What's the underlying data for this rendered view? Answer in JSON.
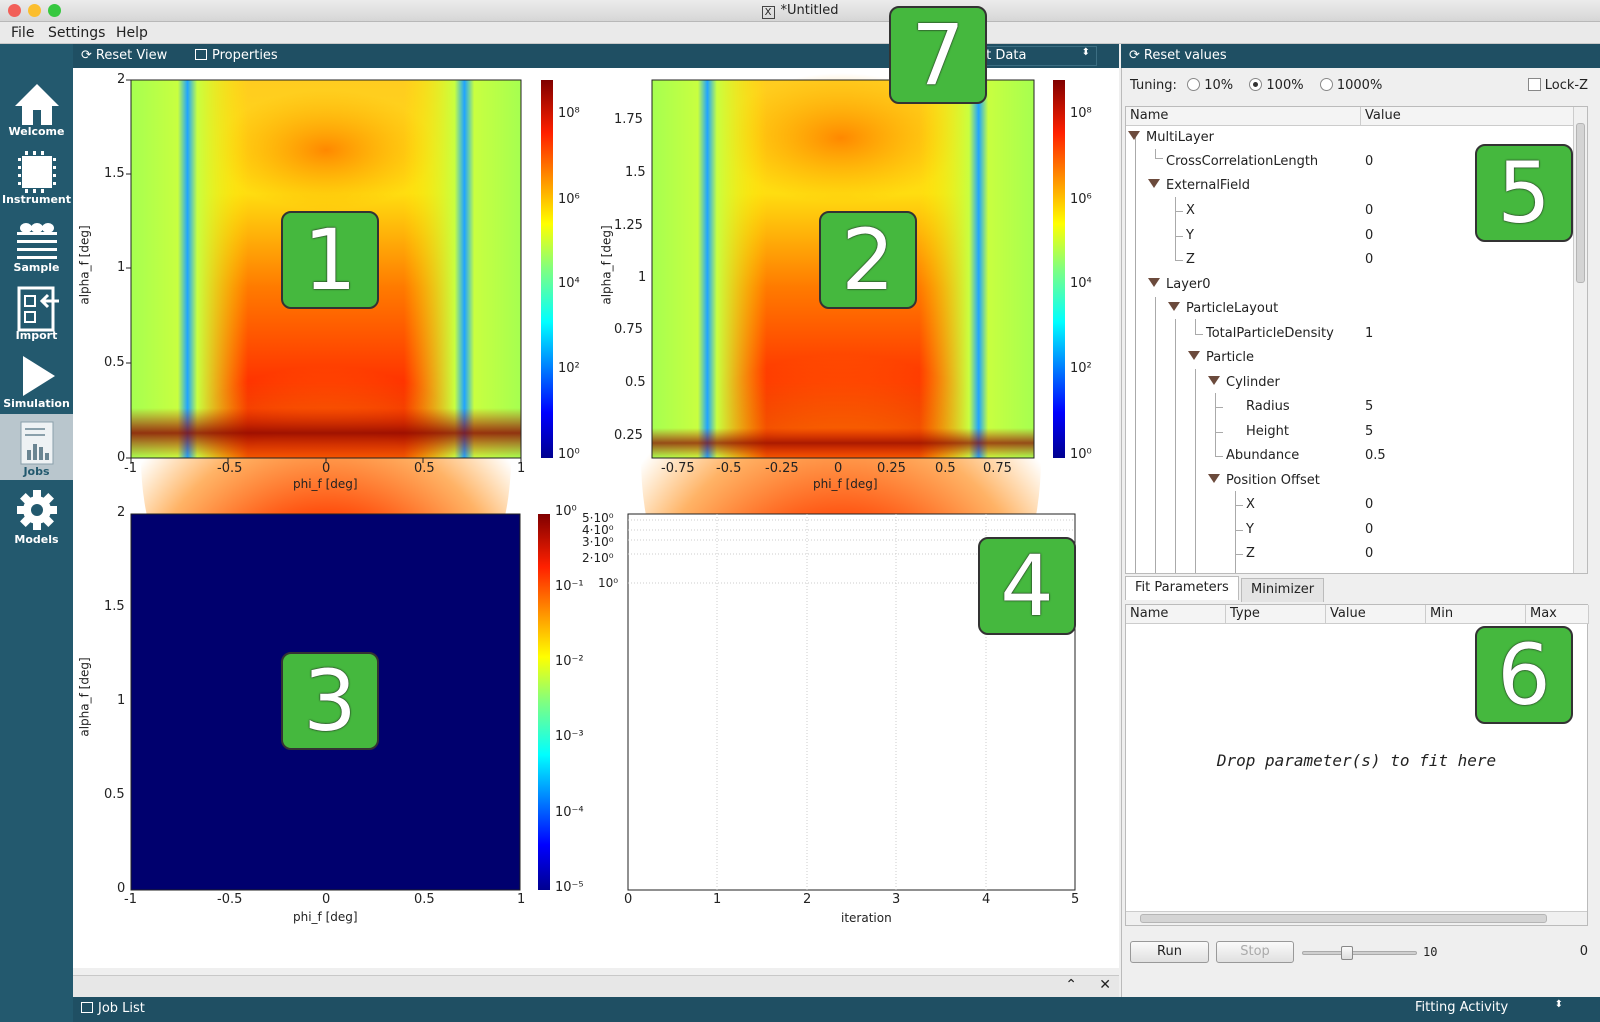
{
  "window": {
    "title": "*Untitled"
  },
  "menu": {
    "file": "File",
    "settings": "Settings",
    "help": "Help"
  },
  "sidebar": {
    "items": [
      {
        "label": "Welcome"
      },
      {
        "label": "Instrument"
      },
      {
        "label": "Sample"
      },
      {
        "label": "Import"
      },
      {
        "label": "Simulation"
      },
      {
        "label": "Jobs"
      },
      {
        "label": "Models"
      }
    ]
  },
  "toolbar": {
    "reset_view": "Reset View",
    "properties": "Properties",
    "fit_data": "Fit Data",
    "reset_values": "Reset values"
  },
  "badges": [
    "1",
    "2",
    "3",
    "4",
    "5",
    "6",
    "7"
  ],
  "plots": {
    "p1": {
      "xticks": [
        "-1",
        "-0.5",
        "0",
        "0.5",
        "1"
      ],
      "yticks": [
        "0",
        "0.5",
        "1",
        "1.5",
        "2"
      ],
      "xlabel": "phi_f [deg]",
      "ylabel": "alpha_f [deg]"
    },
    "p2": {
      "xticks": [
        "-0.75",
        "-0.5",
        "-0.25",
        "0",
        "0.25",
        "0.5",
        "0.75"
      ],
      "yticks": [
        "0.25",
        "0.5",
        "0.75",
        "1",
        "1.25",
        "1.5",
        "1.75"
      ],
      "xlabel": "phi_f [deg]",
      "ylabel": "alpha_f [deg]"
    },
    "p3": {
      "xticks": [
        "-1",
        "-0.5",
        "0",
        "0.5",
        "1"
      ],
      "yticks": [
        "0",
        "0.5",
        "1",
        "1.5",
        "2"
      ],
      "xlabel": "phi_f [deg]",
      "ylabel": "alpha_f [deg]"
    },
    "p4": {
      "xticks": [
        "0",
        "1",
        "2",
        "3",
        "4",
        "5"
      ],
      "yticks": [
        "5·10⁰",
        "4·10⁰",
        "3·10⁰",
        "2·10⁰",
        "10⁰"
      ],
      "xlabel": "iteration"
    },
    "cb12": [
      "10⁸",
      "10⁶",
      "10⁴",
      "10²",
      "10⁰"
    ],
    "cb3": [
      "10⁰",
      "10⁻¹",
      "10⁻²",
      "10⁻³",
      "10⁻⁴",
      "10⁻⁵"
    ]
  },
  "tuning": {
    "label": "Tuning:",
    "opt1": "10%",
    "opt2": "100%",
    "opt3": "1000%",
    "selected": "100%",
    "lockz": "Lock-Z"
  },
  "tree": {
    "col_name": "Name",
    "col_value": "Value",
    "rows": [
      {
        "name": "MultiLayer",
        "value": ""
      },
      {
        "name": "CrossCorrelationLength",
        "value": "0"
      },
      {
        "name": "ExternalField",
        "value": ""
      },
      {
        "name": "X",
        "value": "0"
      },
      {
        "name": "Y",
        "value": "0"
      },
      {
        "name": "Z",
        "value": "0"
      },
      {
        "name": "Layer0",
        "value": ""
      },
      {
        "name": "ParticleLayout",
        "value": ""
      },
      {
        "name": "TotalParticleDensity",
        "value": "1"
      },
      {
        "name": "Particle",
        "value": ""
      },
      {
        "name": "Cylinder",
        "value": ""
      },
      {
        "name": "Radius",
        "value": "5"
      },
      {
        "name": "Height",
        "value": "5"
      },
      {
        "name": "Abundance",
        "value": "0.5"
      },
      {
        "name": "Position Offset",
        "value": ""
      },
      {
        "name": "X",
        "value": "0"
      },
      {
        "name": "Y",
        "value": "0"
      },
      {
        "name": "Z",
        "value": "0"
      }
    ]
  },
  "fit": {
    "tab1": "Fit Parameters",
    "tab2": "Minimizer",
    "cols": [
      "Name",
      "Type",
      "Value",
      "Min",
      "Max"
    ],
    "placeholder": "Drop parameter(s) to fit here",
    "run": "Run",
    "stop": "Stop",
    "slider_value": "10",
    "iteration": "0"
  },
  "status": {
    "job_list": "Job List",
    "activity": "Fitting Activity"
  },
  "colors": {
    "accent": "#1f4f63",
    "sidebar": "#23596e",
    "badge": "#45b83e"
  }
}
